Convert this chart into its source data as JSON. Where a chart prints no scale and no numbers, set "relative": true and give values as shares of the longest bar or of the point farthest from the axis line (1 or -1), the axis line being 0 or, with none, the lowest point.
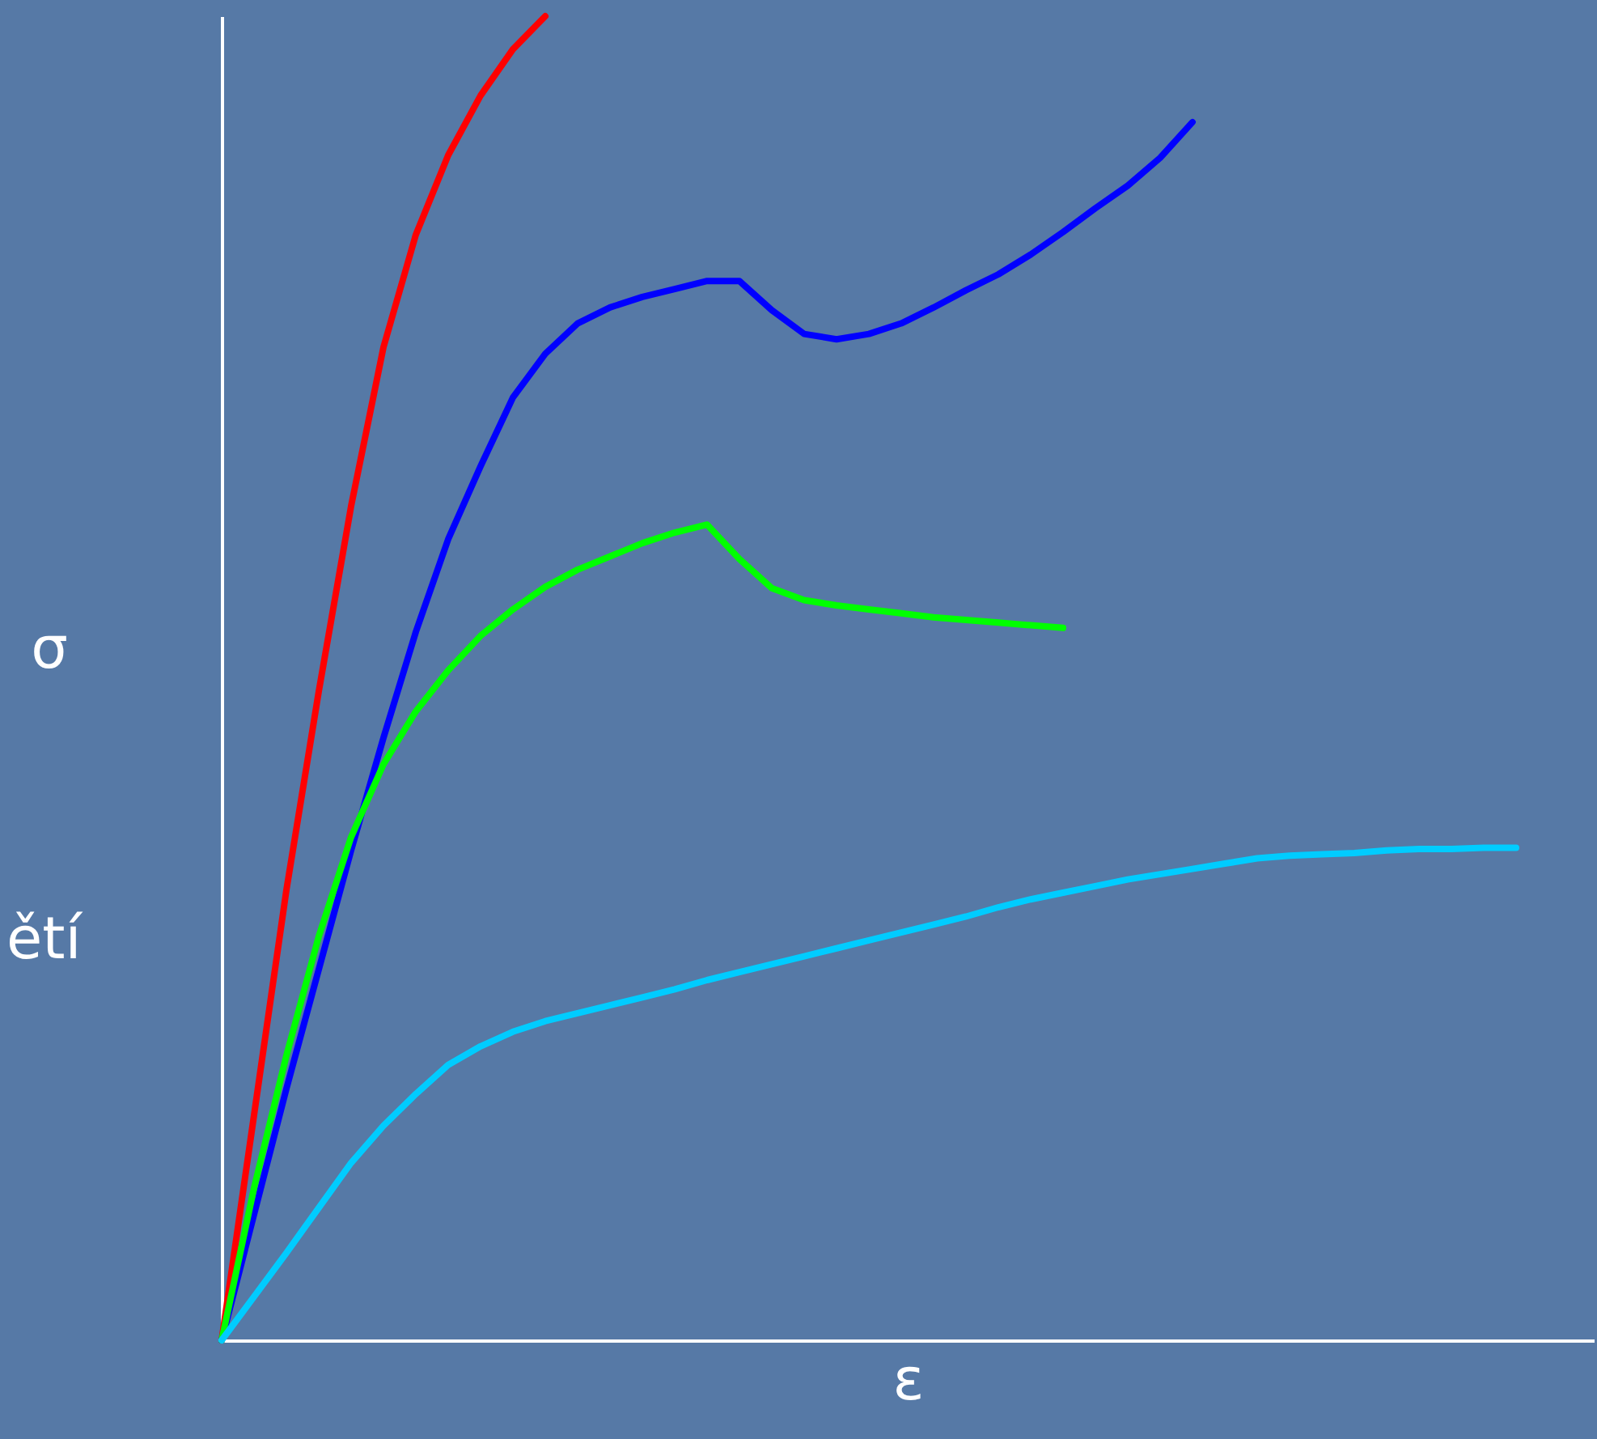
{
  "chart_data": {
    "type": "line",
    "relative": true,
    "xlabel": "ε",
    "ylabel": "σ",
    "annotations": [
      "ětí"
    ],
    "marker": "none",
    "categories": [
      null,
      null,
      null,
      null,
      null,
      null,
      null,
      null,
      null,
      null,
      null,
      null,
      null,
      null,
      null,
      null,
      null,
      null,
      null,
      null,
      null,
      null,
      null,
      null,
      null,
      null,
      null,
      null,
      null,
      null,
      null,
      null,
      null,
      null,
      null,
      null,
      null,
      null,
      null,
      null,
      null
    ],
    "series": [
      {
        "color": "#ff0000",
        "values": [
          0,
          0.17,
          0.34,
          0.49,
          0.63,
          0.75,
          0.835,
          0.895,
          0.94,
          0.975,
          1.0,
          null,
          null,
          null,
          null,
          null,
          null,
          null,
          null,
          null,
          null,
          null,
          null,
          null,
          null,
          null,
          null,
          null,
          null,
          null,
          null,
          null,
          null,
          null,
          null,
          null,
          null,
          null,
          null,
          null,
          null
        ]
      },
      {
        "color": "#0000ff",
        "values": [
          0,
          0.095,
          0.19,
          0.28,
          0.37,
          0.455,
          0.535,
          0.605,
          0.66,
          0.712,
          0.745,
          0.768,
          0.78,
          0.788,
          0.794,
          0.8,
          0.8,
          0.778,
          0.76,
          0.756,
          0.76,
          0.768,
          0.78,
          0.793,
          0.805,
          0.82,
          0.837,
          0.855,
          0.872,
          0.893,
          0.92,
          null,
          null,
          null,
          null,
          null,
          null,
          null,
          null,
          null,
          null
        ]
      },
      {
        "color": "#00ff00",
        "values": [
          0,
          0.115,
          0.215,
          0.305,
          0.38,
          0.435,
          0.475,
          0.506,
          0.532,
          0.552,
          0.569,
          0.582,
          0.592,
          0.602,
          0.61,
          0.616,
          0.59,
          0.568,
          0.559,
          0.555,
          0.552,
          0.549,
          0.546,
          0.544,
          0.542,
          0.54,
          0.538,
          null,
          null,
          null,
          null,
          null,
          null,
          null,
          null,
          null,
          null,
          null,
          null,
          null,
          null
        ]
      },
      {
        "color": "#00ccff",
        "values": [
          0,
          0.033,
          0.066,
          0.1,
          0.134,
          0.162,
          0.186,
          0.208,
          0.222,
          0.233,
          0.241,
          0.247,
          0.253,
          0.259,
          0.265,
          0.272,
          0.278,
          0.284,
          0.29,
          0.296,
          0.302,
          0.308,
          0.314,
          0.32,
          0.327,
          0.333,
          0.338,
          0.343,
          0.348,
          0.352,
          0.356,
          0.36,
          0.364,
          0.366,
          0.367,
          0.368,
          0.37,
          0.371,
          0.371,
          0.372,
          0.372
        ]
      }
    ]
  }
}
